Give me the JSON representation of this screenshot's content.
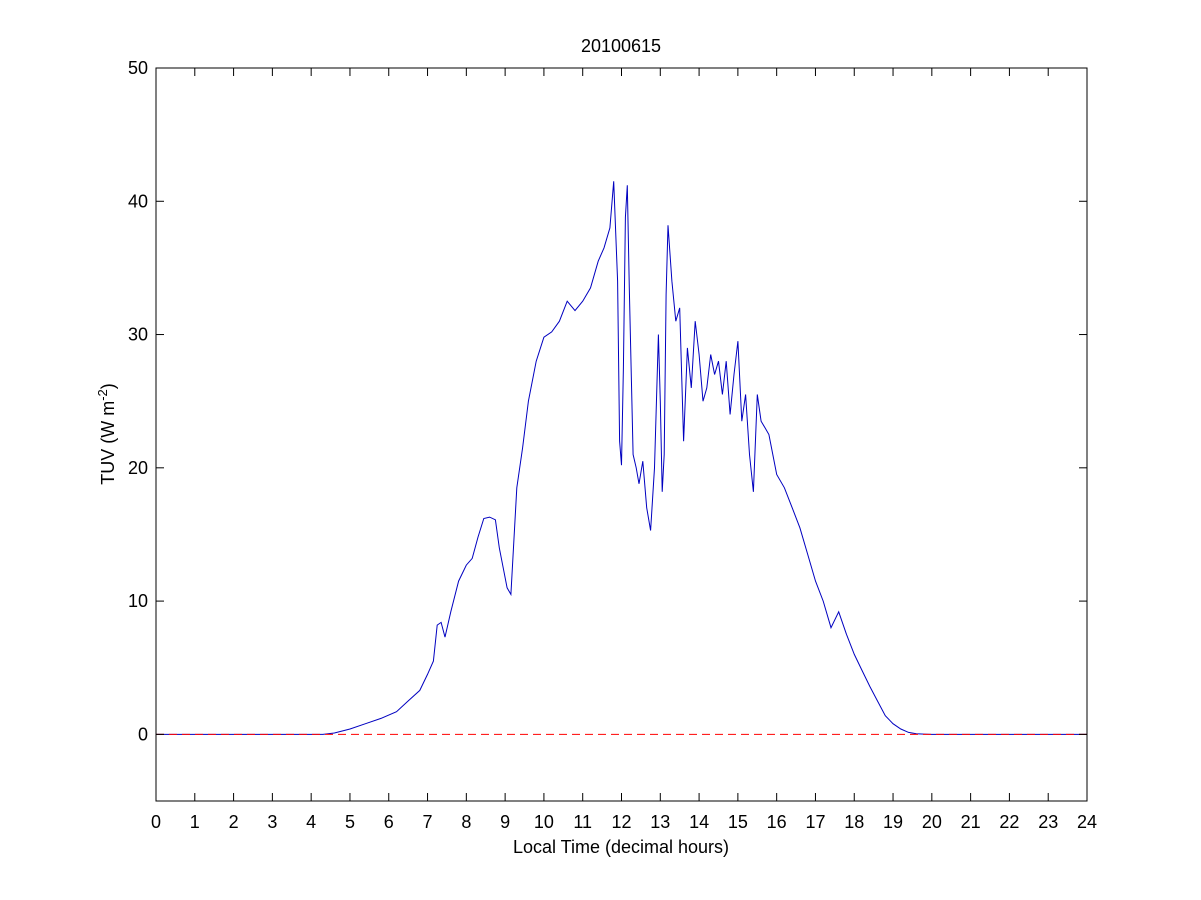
{
  "chart_data": {
    "type": "line",
    "title": "20100615",
    "xlabel": "Local Time (decimal hours)",
    "ylabel": {
      "main": "TUV (W m",
      "superscript": "-2",
      "close": ")"
    },
    "xlim": [
      0,
      24
    ],
    "ylim": [
      -5,
      50
    ],
    "xticks": [
      "0",
      "1",
      "2",
      "3",
      "4",
      "5",
      "6",
      "7",
      "8",
      "9",
      "10",
      "11",
      "12",
      "13",
      "14",
      "15",
      "16",
      "17",
      "18",
      "19",
      "20",
      "21",
      "22",
      "23",
      "24"
    ],
    "yticks": [
      "0",
      "10",
      "20",
      "30",
      "40",
      "50"
    ],
    "grid": false,
    "series": [
      {
        "color": "#0000c0",
        "style": "solid",
        "x": [
          0,
          4.3,
          4.6,
          5.0,
          5.4,
          5.8,
          6.2,
          6.5,
          6.8,
          7.0,
          7.15,
          7.25,
          7.35,
          7.45,
          7.6,
          7.8,
          8.0,
          8.15,
          8.3,
          8.45,
          8.6,
          8.75,
          8.85,
          8.95,
          9.05,
          9.15,
          9.3,
          9.45,
          9.6,
          9.8,
          10.0,
          10.2,
          10.4,
          10.6,
          10.8,
          11.0,
          11.2,
          11.4,
          11.55,
          11.7,
          11.8,
          11.9,
          11.95,
          12.0,
          12.05,
          12.1,
          12.15,
          12.2,
          12.3,
          12.38,
          12.45,
          12.55,
          12.65,
          12.75,
          12.85,
          12.95,
          13.0,
          13.05,
          13.1,
          13.15,
          13.2,
          13.3,
          13.4,
          13.5,
          13.6,
          13.7,
          13.8,
          13.9,
          14.0,
          14.1,
          14.2,
          14.3,
          14.4,
          14.5,
          14.6,
          14.7,
          14.8,
          14.9,
          15.0,
          15.1,
          15.2,
          15.3,
          15.4,
          15.5,
          15.6,
          15.7,
          15.8,
          15.9,
          16.0,
          16.2,
          16.4,
          16.6,
          16.8,
          17.0,
          17.2,
          17.4,
          17.6,
          17.8,
          18.0,
          18.2,
          18.4,
          18.6,
          18.8,
          19.0,
          19.2,
          19.4,
          19.6,
          19.8,
          20.0,
          20.2,
          20.5,
          24
        ],
        "values": [
          0,
          0,
          0.1,
          0.4,
          0.8,
          1.2,
          1.7,
          2.5,
          3.3,
          4.5,
          5.5,
          8.2,
          8.4,
          7.3,
          9.2,
          11.5,
          12.7,
          13.2,
          14.8,
          16.2,
          16.3,
          16.1,
          14.0,
          12.5,
          11.0,
          10.5,
          18.5,
          21.5,
          25.0,
          28.0,
          29.8,
          30.2,
          31.0,
          32.5,
          31.8,
          32.5,
          33.5,
          35.5,
          36.5,
          38.0,
          41.5,
          34.0,
          22.0,
          20.2,
          27.5,
          38.8,
          41.2,
          33.5,
          21.0,
          20.0,
          18.8,
          20.5,
          17.0,
          15.3,
          20.0,
          30.0,
          25.0,
          18.2,
          21.0,
          33.0,
          38.2,
          34.0,
          31.0,
          32.0,
          22.0,
          29.0,
          26.0,
          31.0,
          28.5,
          25.0,
          26.0,
          28.5,
          27.0,
          28.0,
          25.5,
          28.0,
          24.0,
          27.0,
          29.5,
          23.5,
          25.5,
          21.0,
          18.2,
          25.5,
          23.5,
          23.0,
          22.5,
          21.0,
          19.5,
          18.5,
          17.0,
          15.5,
          13.5,
          11.5,
          10.0,
          8.0,
          9.2,
          7.5,
          6.0,
          4.8,
          3.6,
          2.5,
          1.4,
          0.8,
          0.4,
          0.15,
          0.05,
          0.02,
          0,
          0,
          0,
          0
        ]
      },
      {
        "color": "#ff0000",
        "style": "dashed",
        "x": [
          0,
          24
        ],
        "values": [
          0,
          0
        ]
      }
    ]
  }
}
